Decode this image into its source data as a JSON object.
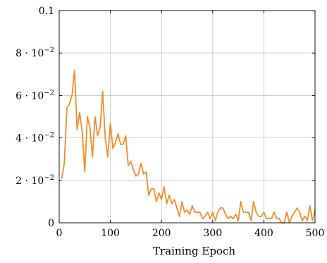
{
  "chart_data": {
    "type": "line",
    "xlabel": "Training Epoch",
    "ylabel": "",
    "xlim": [
      0,
      500
    ],
    "ylim": [
      0,
      0.1
    ],
    "grid": true,
    "x_ticks": [
      {
        "value": 0,
        "label": "0"
      },
      {
        "value": 100,
        "label": "100"
      },
      {
        "value": 200,
        "label": "200"
      },
      {
        "value": 300,
        "label": "300"
      },
      {
        "value": 400,
        "label": "400"
      },
      {
        "value": 500,
        "label": "500"
      }
    ],
    "y_ticks": [
      {
        "value": 0,
        "base": "0",
        "exp": ""
      },
      {
        "value": 0.02,
        "base": "2 · 10",
        "exp": "−2"
      },
      {
        "value": 0.04,
        "base": "4 · 10",
        "exp": "−2"
      },
      {
        "value": 0.06,
        "base": "6 · 10",
        "exp": "−2"
      },
      {
        "value": 0.08,
        "base": "8 · 10",
        "exp": "−2"
      },
      {
        "value": 0.1,
        "base": "0.1",
        "exp": ""
      }
    ],
    "series": [
      {
        "color": "#f28e2b",
        "x": [
          5,
          10,
          15,
          20,
          25,
          30,
          35,
          40,
          45,
          50,
          55,
          60,
          65,
          70,
          75,
          80,
          85,
          90,
          95,
          100,
          105,
          110,
          115,
          120,
          125,
          130,
          135,
          140,
          145,
          150,
          155,
          160,
          165,
          170,
          175,
          180,
          185,
          190,
          195,
          200,
          205,
          210,
          215,
          220,
          225,
          230,
          235,
          240,
          245,
          250,
          255,
          260,
          265,
          270,
          275,
          280,
          285,
          290,
          295,
          300,
          305,
          310,
          315,
          320,
          325,
          330,
          335,
          340,
          345,
          350,
          355,
          360,
          365,
          370,
          375,
          380,
          385,
          390,
          395,
          400,
          405,
          410,
          415,
          420,
          425,
          430,
          435,
          440,
          445,
          450,
          455,
          460,
          465,
          470,
          475,
          480,
          485,
          490,
          495,
          500
        ],
        "y": [
          0.021,
          0.028,
          0.054,
          0.056,
          0.06,
          0.072,
          0.044,
          0.052,
          0.043,
          0.024,
          0.05,
          0.045,
          0.031,
          0.05,
          0.041,
          0.045,
          0.062,
          0.04,
          0.031,
          0.047,
          0.035,
          0.038,
          0.042,
          0.037,
          0.037,
          0.041,
          0.027,
          0.029,
          0.025,
          0.022,
          0.023,
          0.028,
          0.023,
          0.024,
          0.013,
          0.016,
          0.016,
          0.01,
          0.014,
          0.011,
          0.017,
          0.009,
          0.013,
          0.009,
          0.011,
          0.007,
          0.003,
          0.01,
          0.005,
          0.006,
          0.004,
          0.008,
          0.005,
          0.005,
          0.005,
          0.002,
          0.003,
          0.005,
          0.002,
          0.005,
          0.001,
          0.005,
          0.007,
          0.007,
          0.004,
          0.002,
          0.003,
          0.002,
          0.004,
          0.001,
          0.01,
          0.005,
          0.005,
          0.005,
          0.001,
          0.01,
          0.005,
          0.003,
          0.003,
          0.005,
          0.002,
          0.002,
          0.002,
          0.005,
          0.002,
          0.002,
          0.0,
          0.0,
          0.005,
          0.0,
          0.003,
          0.005,
          0.007,
          0.005,
          0.001,
          0.003,
          0.001,
          0.008,
          0.001,
          0.006
        ]
      }
    ]
  }
}
